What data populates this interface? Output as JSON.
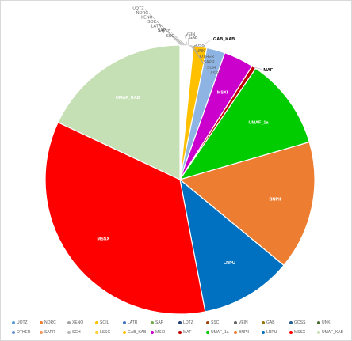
{
  "chart_data": {
    "type": "pie",
    "title": "",
    "slices": [
      {
        "label": "UQTZ",
        "value": 0.1,
        "color": "#5b9bd5",
        "show": "out"
      },
      {
        "label": "NORC",
        "value": 0.1,
        "color": "#ed7d31",
        "show": "out"
      },
      {
        "label": "XENO",
        "value": 0.1,
        "color": "#a5a5a5",
        "show": "out"
      },
      {
        "label": "SOIL",
        "value": 0.1,
        "color": "#ffc000",
        "show": "out"
      },
      {
        "label": "LATR",
        "value": 0.1,
        "color": "#4472c4",
        "show": "out"
      },
      {
        "label": "SAP",
        "value": 0.1,
        "color": "#70ad47",
        "show": "out"
      },
      {
        "label": "LQTZ",
        "value": 0.1,
        "color": "#264478",
        "show": "out"
      },
      {
        "label": "SSC",
        "value": 0.1,
        "color": "#9e480e",
        "show": "out"
      },
      {
        "label": "VEIN",
        "value": 0.1,
        "color": "#636363",
        "show": "out"
      },
      {
        "label": "GAB",
        "value": 0.1,
        "color": "#997300",
        "show": "out"
      },
      {
        "label": "GOSS",
        "value": 0.1,
        "color": "#255e91",
        "show": "out"
      },
      {
        "label": "UNK",
        "value": 0.1,
        "color": "#43682b",
        "show": "out"
      },
      {
        "label": "OTHER",
        "value": 0.1,
        "color": "#698ed0",
        "show": "out"
      },
      {
        "label": "SAPR",
        "value": 0.1,
        "color": "#f1975a",
        "show": "out"
      },
      {
        "label": "SCH",
        "value": 0.1,
        "color": "#b7b7b7",
        "show": "out"
      },
      {
        "label": "LSSC",
        "value": 0.1,
        "color": "#ffcd33",
        "show": "out"
      },
      {
        "label": "GAB_KAB",
        "value": 1.6,
        "color": "#ffc000",
        "show": "outb"
      },
      {
        "label": "",
        "value": 2.2,
        "color": "#8eb4e3",
        "show": "none"
      },
      {
        "label": "MSXI",
        "value": 3.6,
        "color": "#cc00cc",
        "show": "in"
      },
      {
        "label": "MAF",
        "value": 0.5,
        "color": "#c00000",
        "show": "outb"
      },
      {
        "label": "UMAF_1a",
        "value": 11.0,
        "color": "#00cc00",
        "show": "in"
      },
      {
        "label": "BNPII",
        "value": 15.5,
        "color": "#ed7d31",
        "show": "in"
      },
      {
        "label": "LRPU",
        "value": 11.0,
        "color": "#0070c0",
        "show": "in"
      },
      {
        "label": "MSSX",
        "value": 35.0,
        "color": "#ff0000",
        "show": "in"
      },
      {
        "label": "UMAF_KAB",
        "value": 18.0,
        "color": "#c5e0b4",
        "show": "in"
      }
    ],
    "legend": {
      "placement": "bottom",
      "items": [
        {
          "label": "UQTZ",
          "color": "#5b9bd5"
        },
        {
          "label": "NORC",
          "color": "#ed7d31"
        },
        {
          "label": "XENO",
          "color": "#a5a5a5"
        },
        {
          "label": "SOIL",
          "color": "#ffc000"
        },
        {
          "label": "LATR",
          "color": "#4472c4"
        },
        {
          "label": "SAP",
          "color": "#70ad47"
        },
        {
          "label": "LQTZ",
          "color": "#264478"
        },
        {
          "label": "SSC",
          "color": "#9e480e"
        },
        {
          "label": "VEIN",
          "color": "#636363"
        },
        {
          "label": "GAB",
          "color": "#997300"
        },
        {
          "label": "GOSS",
          "color": "#255e91"
        },
        {
          "label": "UNK",
          "color": "#43682b"
        },
        {
          "label": "OTHER",
          "color": "#698ed0"
        },
        {
          "label": "SAPR",
          "color": "#f1975a"
        },
        {
          "label": "SCH",
          "color": "#b7b7b7"
        },
        {
          "label": "LSSC",
          "color": "#ffcd33"
        },
        {
          "label": "GAB_KAB",
          "color": "#ffc000"
        },
        {
          "label": "MSXI",
          "color": "#cc00cc"
        },
        {
          "label": "MAF",
          "color": "#c00000"
        },
        {
          "label": "UMAF_1a",
          "color": "#00cc00"
        },
        {
          "label": "BNPII",
          "color": "#ed7d31"
        },
        {
          "label": "LRPU",
          "color": "#0070c0"
        },
        {
          "label": "MSSX",
          "color": "#ff0000"
        },
        {
          "label": "UMAF_KAB",
          "color": "#c5e0b4"
        }
      ]
    }
  }
}
